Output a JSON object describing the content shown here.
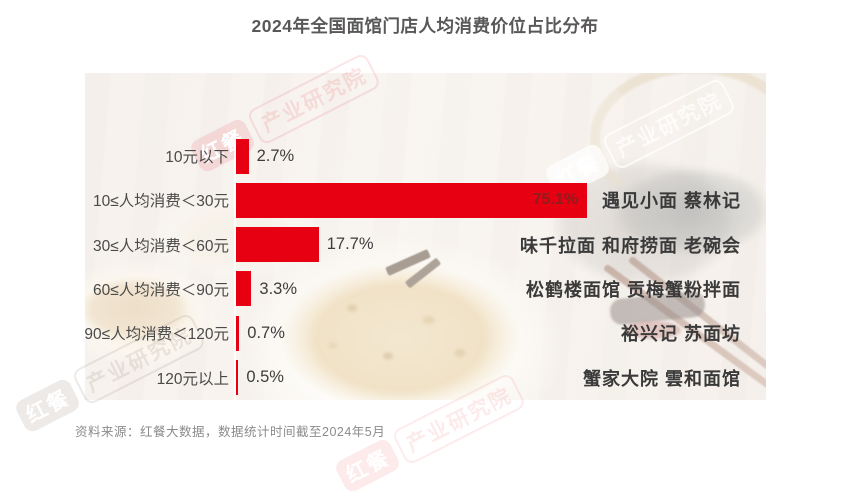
{
  "title": "2024年全国面馆门店人均消费价位占比分布",
  "footer": {
    "source_note": "资料来源：红餐大数据，数据统计时间截至2024年5月"
  },
  "watermark": {
    "brand": "红餐",
    "institute": "产业研究院"
  },
  "colors": {
    "bar": "#e60012",
    "bar_inner_label": "#8f1d1d",
    "title_text": "#595757",
    "label_text": "#4a4a4a",
    "brand_text": "#3a3a3a",
    "source_text": "#8b8b8b"
  },
  "chart_data": {
    "type": "bar",
    "orientation": "horizontal",
    "title": "2024年全国面馆门店人均消费价位占比分布",
    "unit": "%",
    "xlim": [
      0,
      100
    ],
    "grid": false,
    "legend": "none",
    "categories": [
      "10元以下",
      "10≤人均消费＜30元",
      "30≤人均消费＜60元",
      "60≤人均消费＜90元",
      "90≤人均消费＜120元",
      "120元以上"
    ],
    "values": [
      2.7,
      75.1,
      17.7,
      3.3,
      0.7,
      0.5
    ],
    "value_labels": [
      "2.7%",
      "75.1%",
      "17.7%",
      "3.3%",
      "0.7%",
      "0.5%"
    ],
    "brand_examples": [
      "",
      "遇见小面 蔡林记",
      "味千拉面 和府捞面 老碗会",
      "松鹤楼面馆 贡梅蟹粉拌面",
      "裕兴记 苏面坊",
      "蟹家大院 雲和面馆"
    ]
  }
}
